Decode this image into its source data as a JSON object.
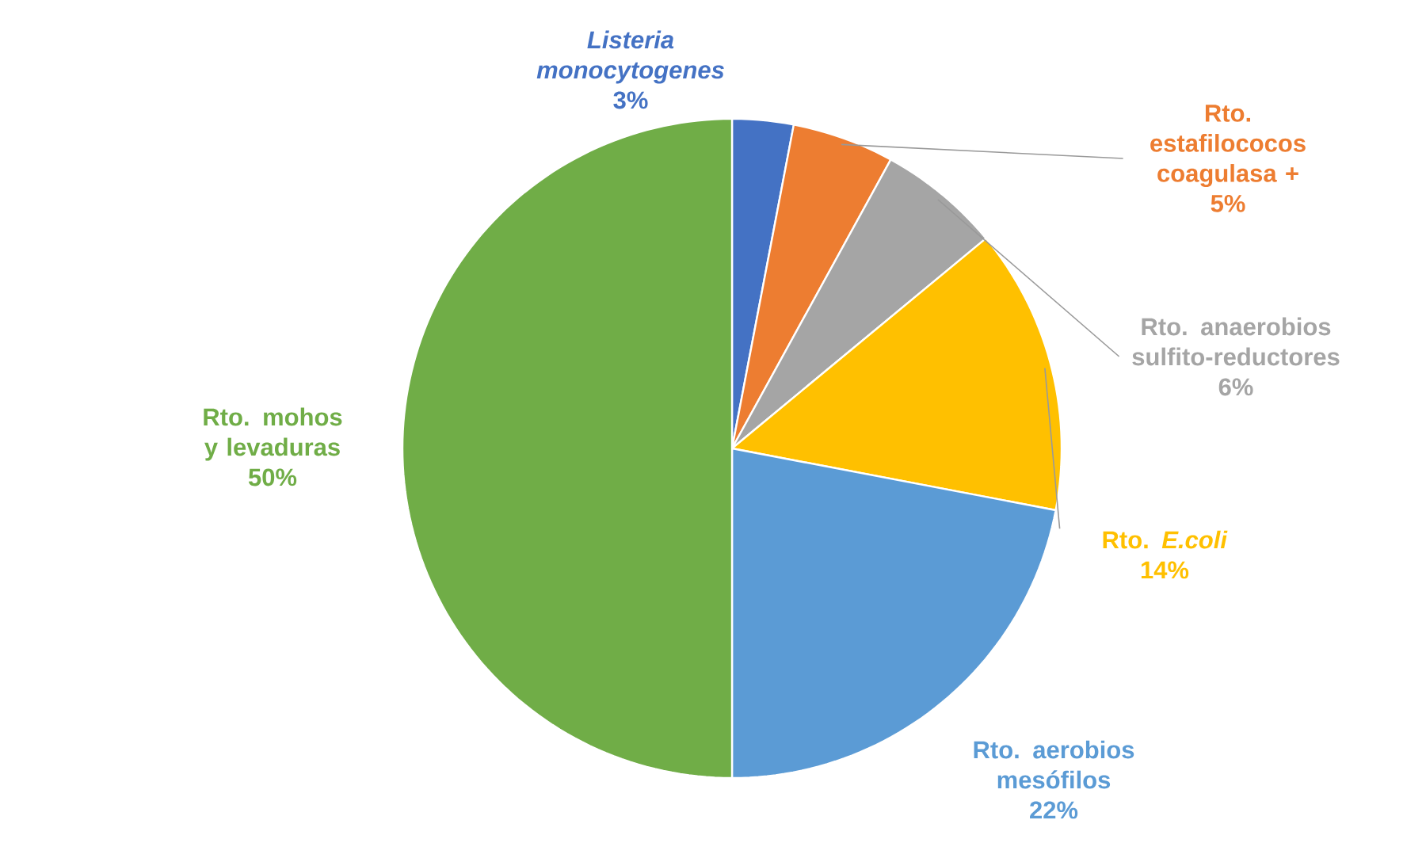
{
  "chart_data": {
    "type": "pie",
    "categories": [
      "*Listeria monocytogenes*",
      "Rto. estafilococos coagulasa +",
      "Rto. anaerobios sulfito-reductores",
      "Rto. *E.coli*",
      "Rto. aerobios mesófilos",
      "Rto. mohos y levaduras"
    ],
    "values": [
      3,
      5,
      6,
      14,
      22,
      50
    ],
    "value_labels": [
      "3%",
      "5%",
      "6%",
      "14%",
      "22%",
      "50%"
    ],
    "colors": [
      "#4472c4",
      "#ed7d31",
      "#a5a5a5",
      "#ffc000",
      "#5b9bd5",
      "#70ad47"
    ]
  }
}
